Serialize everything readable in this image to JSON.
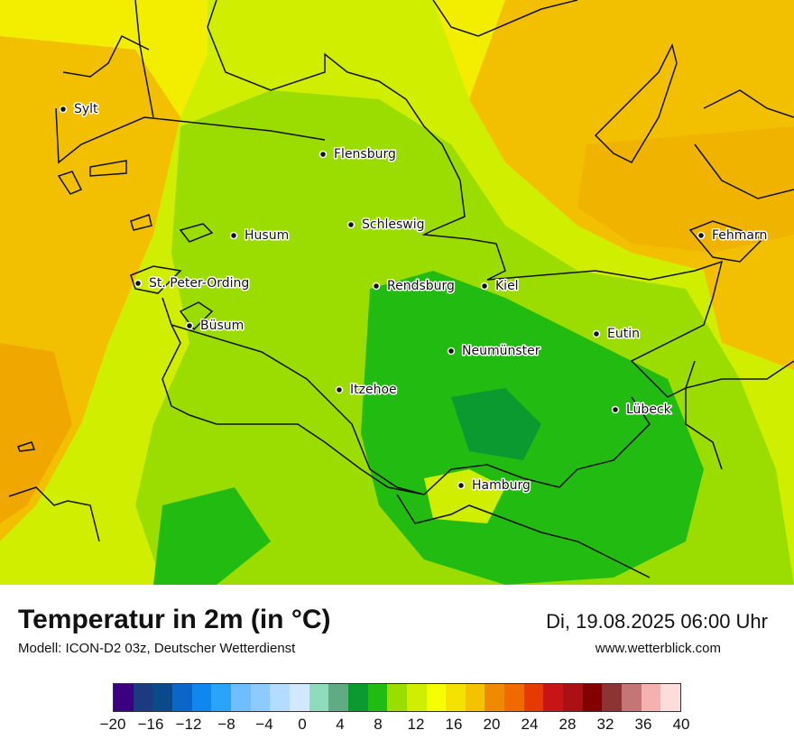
{
  "title": "Temperatur in 2m (in °C)",
  "model": "Modell: ICON-D2 03z, Deutscher Wetterdienst",
  "datetime": "Di, 19.08.2025 06:00 Uhr",
  "website": "www.wetterblick.com",
  "legend": {
    "colors": [
      "#3a0080",
      "#1c3a80",
      "#0a4a8a",
      "#0a66c8",
      "#0f86f0",
      "#2aa3fa",
      "#6ebdff",
      "#8dcaff",
      "#b3dcff",
      "#d2e8ff",
      "#8fdcbc",
      "#60aa84",
      "#0a9a30",
      "#22bb12",
      "#9bdd00",
      "#cfee00",
      "#f5ff00",
      "#f5e200",
      "#f5c200",
      "#f08a00",
      "#f06a00",
      "#e63a00",
      "#c81414",
      "#aa1014",
      "#820000",
      "#8c3434",
      "#c47676",
      "#f5b0b0",
      "#ffdcdc"
    ],
    "ticks": [
      "−20",
      "−16",
      "−12",
      "−8",
      "−4",
      "0",
      "4",
      "8",
      "12",
      "16",
      "20",
      "24",
      "28",
      "32",
      "36",
      "40"
    ]
  },
  "cities": [
    {
      "name": "Sylt"
    },
    {
      "name": "Flensburg"
    },
    {
      "name": "Schleswig"
    },
    {
      "name": "Husum"
    },
    {
      "name": "Fehmarn"
    },
    {
      "name": "St. Peter-Ording"
    },
    {
      "name": "Rendsburg"
    },
    {
      "name": "Kiel"
    },
    {
      "name": "Büsum"
    },
    {
      "name": "Eutin"
    },
    {
      "name": "Neumünster"
    },
    {
      "name": "Itzehoe"
    },
    {
      "name": "Lübeck"
    },
    {
      "name": "Hamburg"
    }
  ]
}
